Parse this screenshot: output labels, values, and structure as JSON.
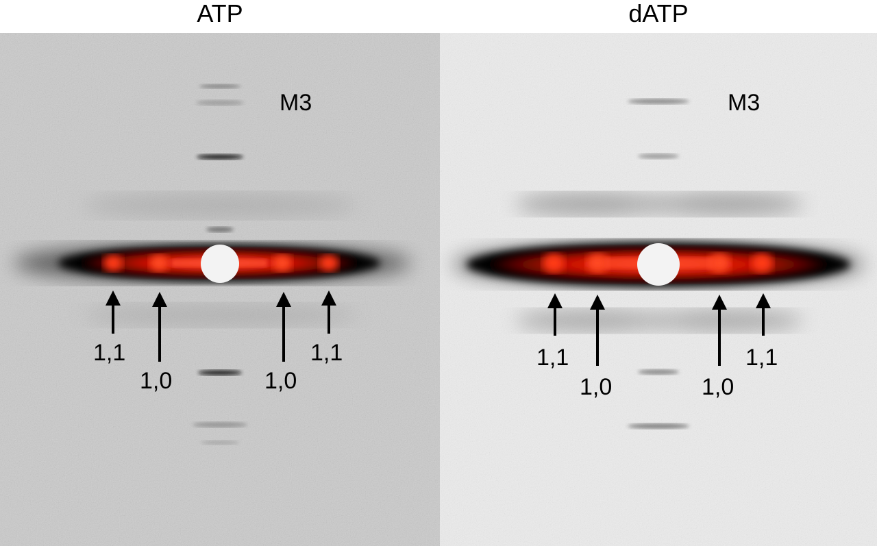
{
  "panels": [
    {
      "title": "ATP",
      "meridional_label": "M3",
      "arrow_labels": [
        "1,1",
        "1,0",
        "1,0",
        "1,1"
      ]
    },
    {
      "title": "dATP",
      "meridional_label": "M3",
      "arrow_labels": [
        "1,1",
        "1,0",
        "1,0",
        "1,1"
      ]
    }
  ],
  "colors": {
    "background_left": "#c9c9c9",
    "background_right": "#e9e9e9",
    "equator_glow": "#d81000",
    "halo": "#000000",
    "beamstop": "#f2f2f2"
  }
}
